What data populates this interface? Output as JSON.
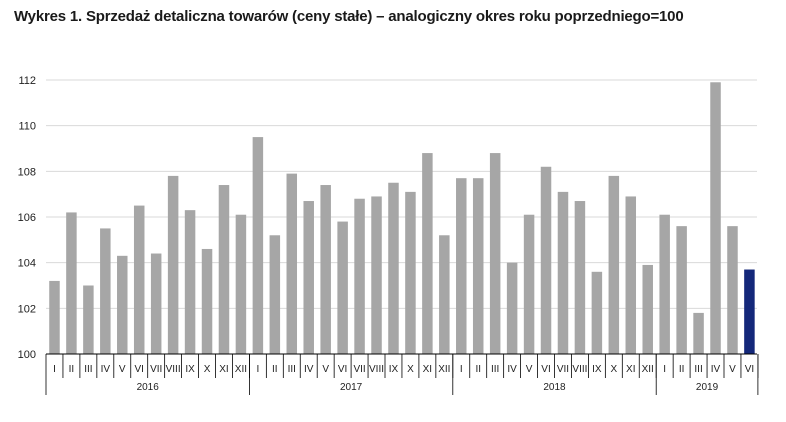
{
  "title": "Wykres 1. Sprzedaż detaliczna towarów (ceny stałe) – analogiczny okres roku poprzedniego=100",
  "colors": {
    "bar": "#a6a6a6",
    "highlight": "#14287a",
    "grid": "#d9d9d9",
    "axis": "#000000"
  },
  "chart_data": {
    "type": "bar",
    "title": "Wykres 1. Sprzedaż detaliczna towarów (ceny stałe) – analogiczny okres roku poprzedniego=100",
    "ylim": [
      100,
      112
    ],
    "yticks": [
      100,
      102,
      104,
      106,
      108,
      110,
      112
    ],
    "grid": true,
    "years": [
      {
        "label": "2016",
        "months": [
          "I",
          "II",
          "III",
          "IV",
          "V",
          "VI",
          "VII",
          "VIII",
          "IX",
          "X",
          "XI",
          "XII"
        ],
        "values": [
          103.2,
          106.2,
          103.0,
          105.5,
          104.3,
          106.5,
          104.4,
          107.8,
          106.3,
          104.6,
          107.4,
          106.1
        ]
      },
      {
        "label": "2017",
        "months": [
          "I",
          "II",
          "III",
          "IV",
          "V",
          "VI",
          "VII",
          "VIII",
          "IX",
          "X",
          "XI",
          "XII"
        ],
        "values": [
          109.5,
          105.2,
          107.9,
          106.7,
          107.4,
          105.8,
          106.8,
          106.9,
          107.5,
          107.1,
          108.8,
          105.2
        ]
      },
      {
        "label": "2018",
        "months": [
          "I",
          "II",
          "III",
          "IV",
          "V",
          "VI",
          "VII",
          "VIII",
          "IX",
          "X",
          "XI",
          "XII"
        ],
        "values": [
          107.7,
          107.7,
          108.8,
          104.0,
          106.1,
          108.2,
          107.1,
          106.7,
          103.6,
          107.8,
          106.9,
          103.9
        ]
      },
      {
        "label": "2019",
        "months": [
          "I",
          "II",
          "III",
          "IV",
          "V",
          "VI"
        ],
        "values": [
          106.1,
          105.6,
          101.8,
          111.9,
          105.6,
          103.7
        ]
      }
    ],
    "highlighted": {
      "year": "2019",
      "month": "VI"
    }
  }
}
